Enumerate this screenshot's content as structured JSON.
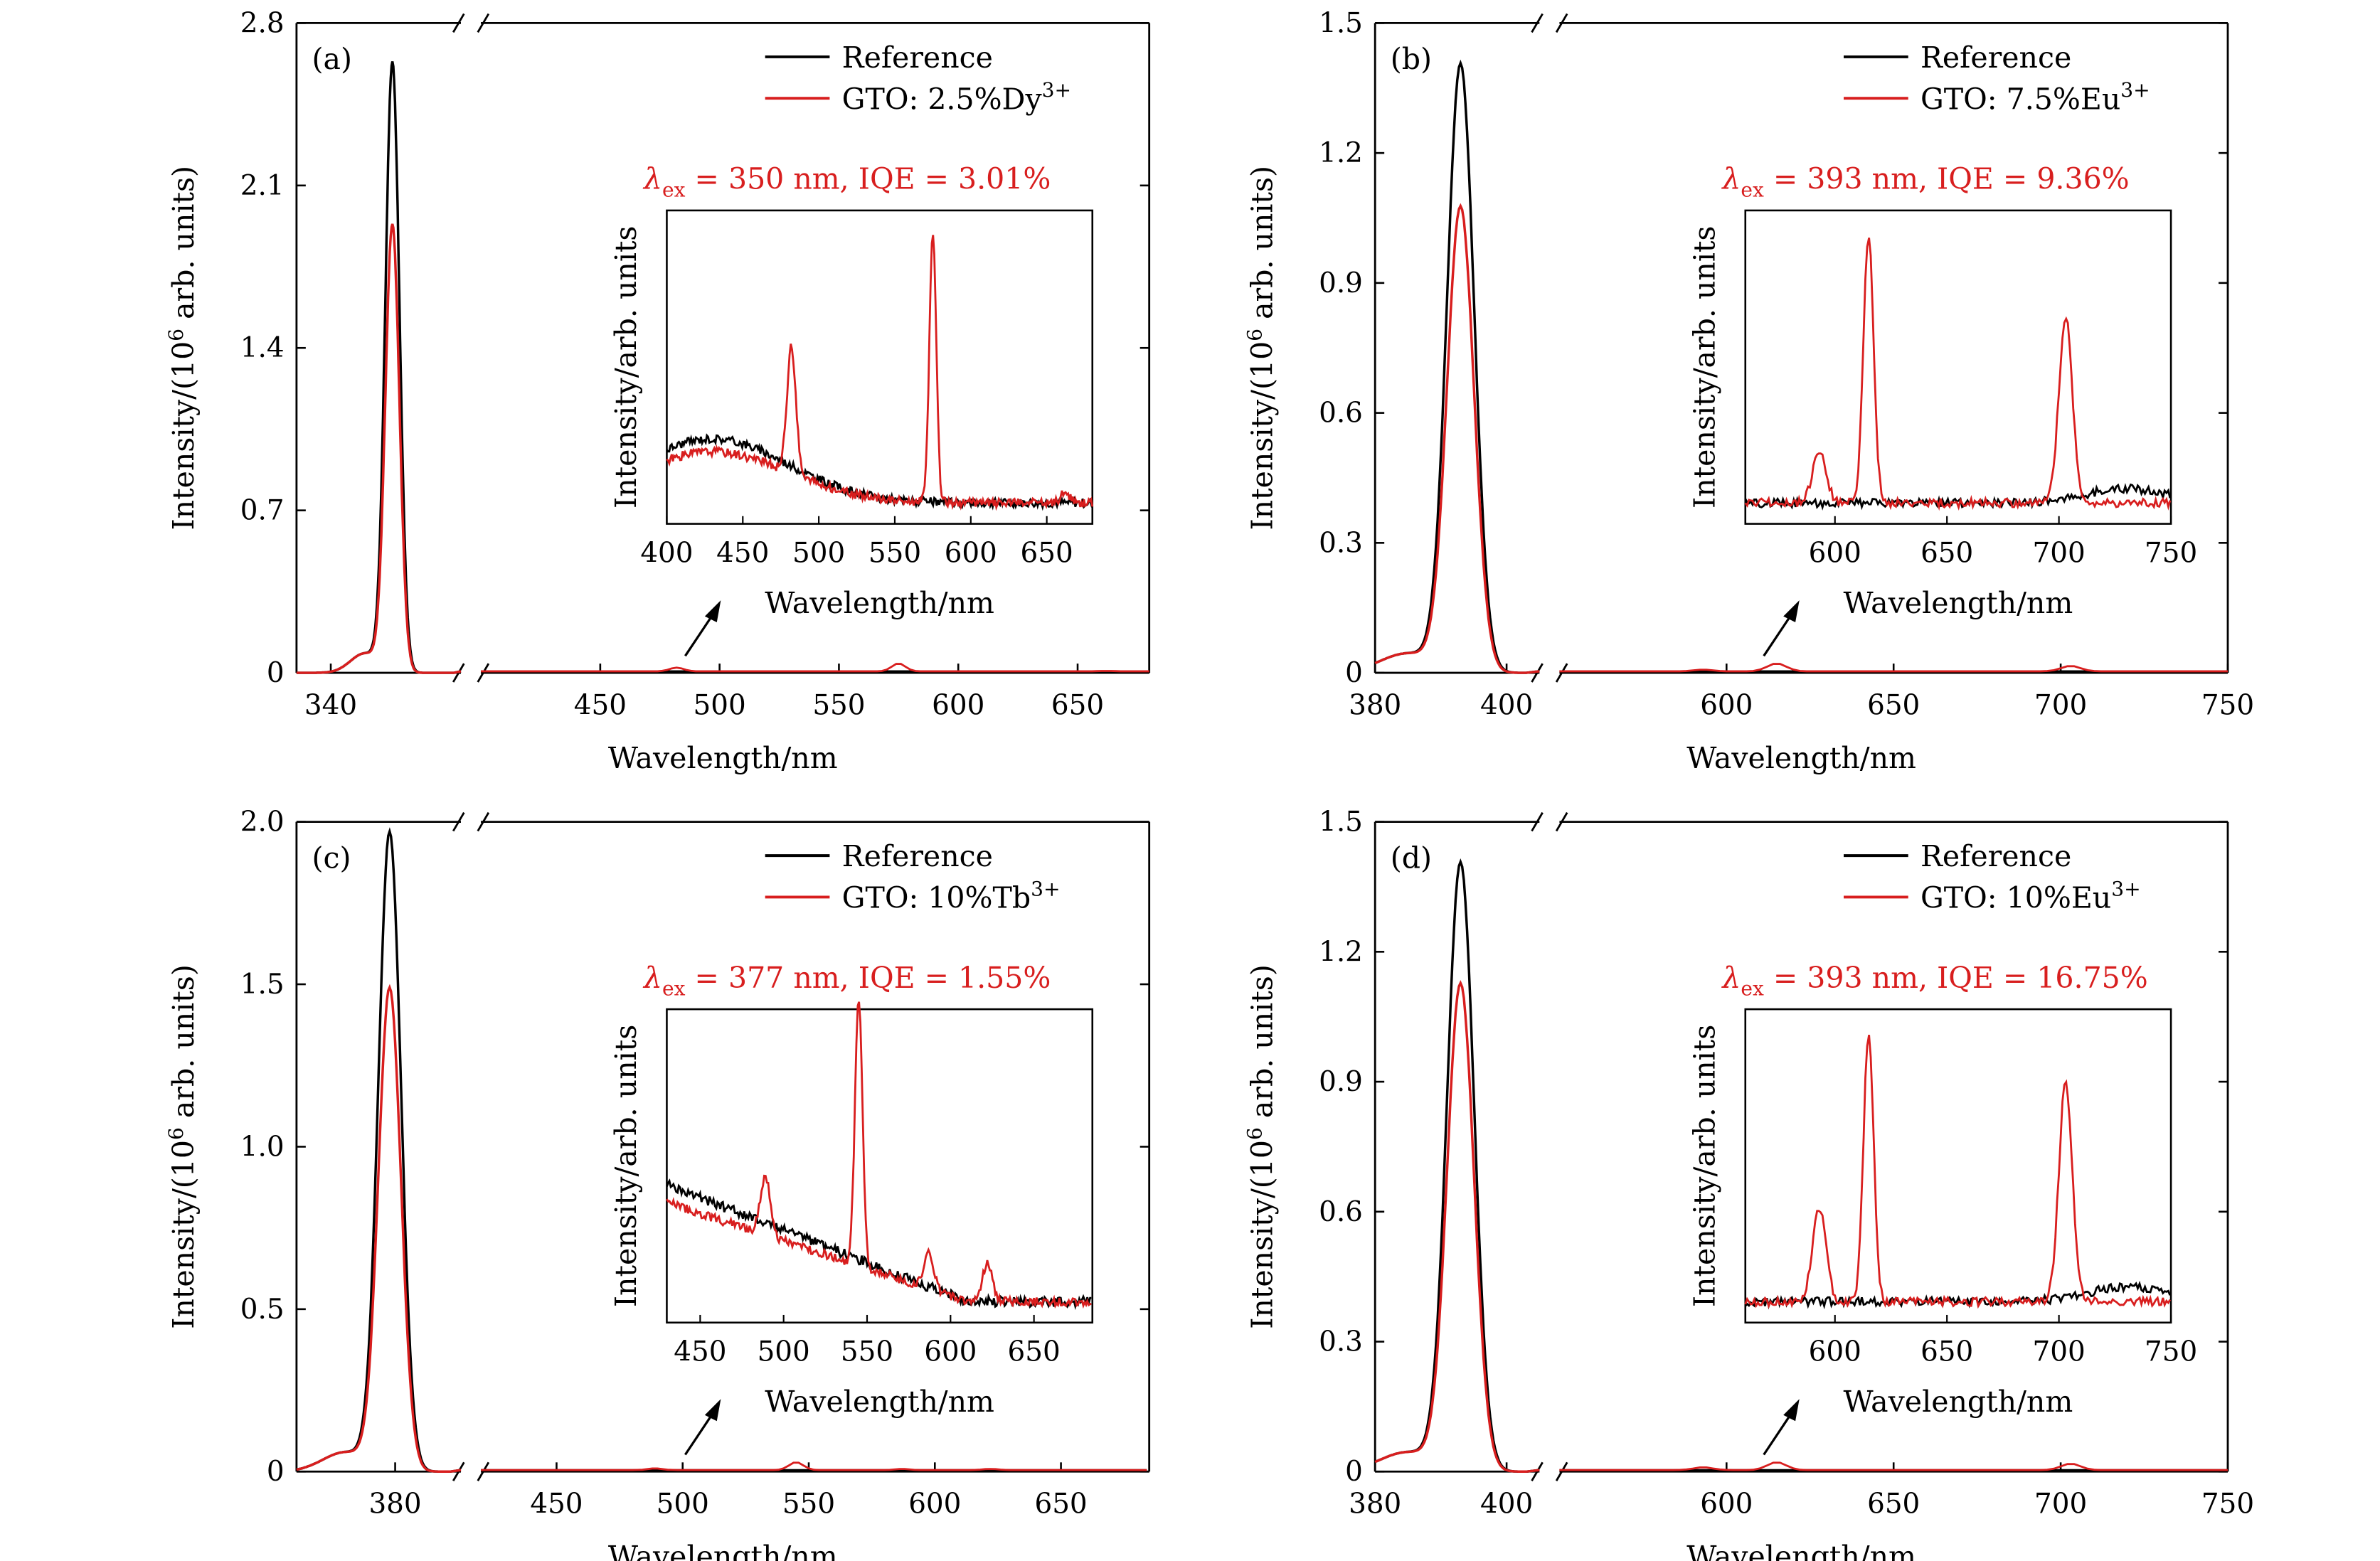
{
  "colors": {
    "reference": "#000000",
    "sample": "#d81e1e"
  },
  "chart_data": [
    {
      "type": "line",
      "panel_label": "(a)",
      "xlabel": "Wavelength/nm",
      "ylabel_main": "Intensity/(10",
      "ylabel_sup": "6",
      "ylabel_tail": " arb. units)",
      "yticks": [
        "0",
        "0.7",
        "1.4",
        "2.1",
        "2.8"
      ],
      "ylim": [
        0,
        2.8
      ],
      "axis_break": true,
      "x_left": {
        "range": [
          330,
          378
        ],
        "ticks": [
          340
        ]
      },
      "x_right": {
        "range": [
          400,
          680
        ],
        "ticks": [
          450,
          500,
          550,
          600,
          650
        ]
      },
      "legend": {
        "position": "top-right",
        "entries": [
          "Reference",
          "GTO: 2.5%Dy",
          "3+"
        ]
      },
      "series": [
        {
          "name": "Reference",
          "peak_x": 358,
          "peak_y": 2.62,
          "base": 0.0
        },
        {
          "name": "GTO: 2.5%Dy3+",
          "peak_x": 358,
          "peak_y": 1.92,
          "base": 0.0
        }
      ],
      "inset": {
        "annotation": {
          "lambda": "λ",
          "sub": "ex",
          "text": " = 350 nm, IQE = 3.01%"
        },
        "xlabel": "Wavelength/nm",
        "ylabel": "Intensity/arb. units",
        "xrange": [
          400,
          680
        ],
        "xticks": [
          400,
          450,
          500,
          550,
          600,
          650
        ],
        "sample_peaks": [
          [
            482,
            0.47
          ],
          [
            575,
            1.0
          ],
          [
            662,
            0.04
          ]
        ],
        "reference_hump": {
          "center": 430,
          "height": 0.22
        }
      }
    },
    {
      "type": "line",
      "panel_label": "(b)",
      "xlabel": "Wavelength/nm",
      "ylabel_main": "Intensity/(10",
      "ylabel_sup": "6",
      "ylabel_tail": " arb. units)",
      "yticks": [
        "0",
        "0.3",
        "0.6",
        "0.9",
        "1.2",
        "1.5"
      ],
      "ylim": [
        0,
        1.5
      ],
      "axis_break": true,
      "x_left": {
        "range": [
          380,
          405
        ],
        "ticks": [
          380,
          400
        ]
      },
      "x_right": {
        "range": [
          550,
          750
        ],
        "ticks": [
          600,
          650,
          700,
          750
        ]
      },
      "legend": {
        "position": "top-right",
        "entries": [
          "Reference",
          "GTO: 7.5%Eu",
          "3+"
        ]
      },
      "series": [
        {
          "name": "Reference",
          "peak_x": 393,
          "peak_y": 1.4
        },
        {
          "name": "GTO: 7.5%Eu3+",
          "peak_x": 393,
          "peak_y": 1.07
        }
      ],
      "inset": {
        "annotation": {
          "lambda": "λ",
          "sub": "ex",
          "text": " = 393 nm, IQE = 9.36%"
        },
        "xlabel": "Wavelength/nm",
        "ylabel": "Intensity/arb. units",
        "xrange": [
          560,
          750
        ],
        "xticks": [
          600,
          650,
          700,
          750
        ],
        "sample_peaks": [
          [
            593,
            0.2
          ],
          [
            615,
            1.0
          ],
          [
            703,
            0.7
          ]
        ],
        "reference_hump": {
          "center": 730,
          "height": 0.05
        }
      }
    },
    {
      "type": "line",
      "panel_label": "(c)",
      "xlabel": "Wavelength/nm",
      "ylabel_main": "Intensity/(10",
      "ylabel_sup": "6",
      "ylabel_tail": " arb. units)",
      "yticks": [
        "0",
        "0.5",
        "1.0",
        "1.5",
        "2.0"
      ],
      "ylim": [
        0,
        2.0
      ],
      "axis_break": true,
      "x_left": {
        "range": [
          362,
          392
        ],
        "ticks": [
          380
        ]
      },
      "x_right": {
        "range": [
          420,
          685
        ],
        "ticks": [
          450,
          500,
          550,
          600,
          650
        ]
      },
      "legend": {
        "position": "top-right",
        "entries": [
          "Reference",
          "GTO: 10%Tb",
          "3+"
        ]
      },
      "series": [
        {
          "name": "Reference",
          "peak_x": 379,
          "peak_y": 1.96
        },
        {
          "name": "GTO: 10%Tb3+",
          "peak_x": 379,
          "peak_y": 1.48
        }
      ],
      "inset": {
        "annotation": {
          "lambda": "λ",
          "sub": "ex",
          "text": " = 377 nm, IQE = 1.55%"
        },
        "xlabel": "Wavelength/nm",
        "ylabel": "Intensity/arb. units",
        "xrange": [
          430,
          685
        ],
        "xticks": [
          450,
          500,
          550,
          600,
          650
        ],
        "sample_peaks": [
          [
            489,
            0.22
          ],
          [
            545,
            1.0
          ],
          [
            587,
            0.14
          ],
          [
            622,
            0.14
          ]
        ],
        "reference_hump": {
          "center": 430,
          "height": 0.4
        }
      }
    },
    {
      "type": "line",
      "panel_label": "(d)",
      "xlabel": "Wavelength/nm",
      "ylabel_main": "Intensity/(10",
      "ylabel_sup": "6",
      "ylabel_tail": " arb. units)",
      "yticks": [
        "0",
        "0.3",
        "0.6",
        "0.9",
        "1.2",
        "1.5"
      ],
      "ylim": [
        0,
        1.5
      ],
      "axis_break": true,
      "x_left": {
        "range": [
          380,
          405
        ],
        "ticks": [
          380,
          400
        ]
      },
      "x_right": {
        "range": [
          550,
          750
        ],
        "ticks": [
          600,
          650,
          700,
          750
        ]
      },
      "legend": {
        "position": "top-right",
        "entries": [
          "Reference",
          "GTO: 10%Eu",
          "3+"
        ]
      },
      "series": [
        {
          "name": "Reference",
          "peak_x": 393,
          "peak_y": 1.4
        },
        {
          "name": "GTO: 10%Eu3+",
          "peak_x": 393,
          "peak_y": 1.12
        }
      ],
      "inset": {
        "annotation": {
          "lambda": "λ",
          "sub": "ex",
          "text": " = 393 nm, IQE = 16.75%"
        },
        "xlabel": "Wavelength/nm",
        "ylabel": "Intensity/arb. units",
        "xrange": [
          560,
          750
        ],
        "xticks": [
          600,
          650,
          700,
          750
        ],
        "sample_peaks": [
          [
            593,
            0.35
          ],
          [
            615,
            1.0
          ],
          [
            703,
            0.82
          ]
        ],
        "reference_hump": {
          "center": 730,
          "height": 0.05
        }
      }
    }
  ]
}
